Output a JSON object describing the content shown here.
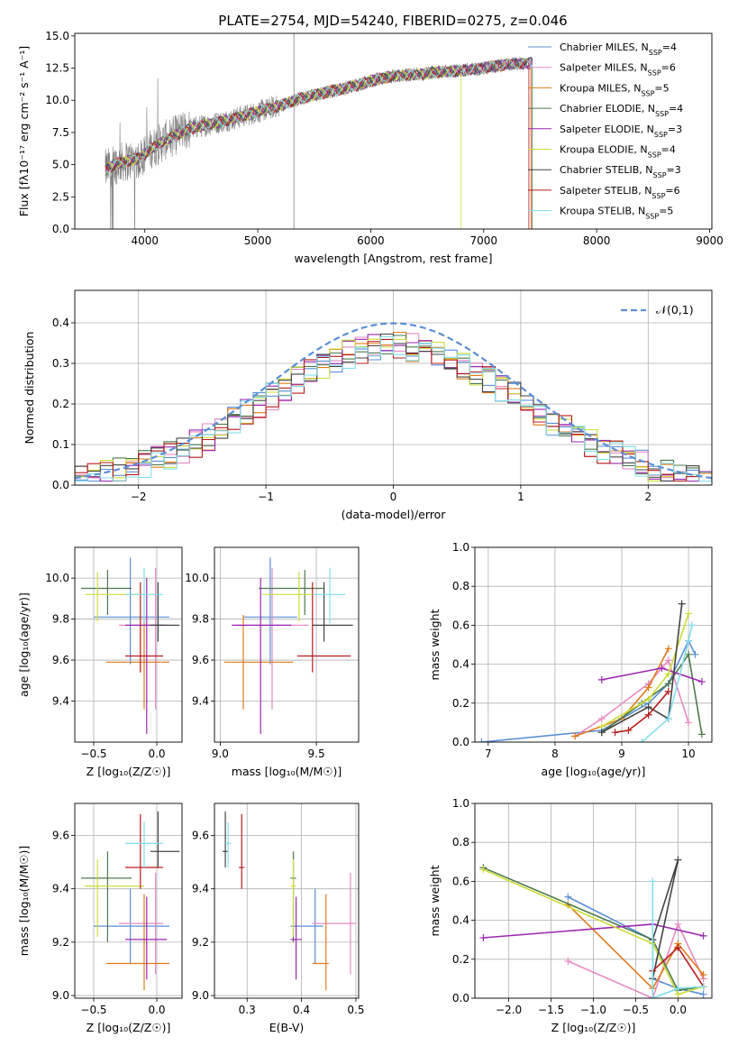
{
  "title": "PLATE=2754, MJD=54240, FIBERID=0275, z=0.046",
  "colors": {
    "data": "#808080",
    "Chabrier MILES": "#5b8fd6",
    "Salpeter MILES": "#e78ac3",
    "Kroupa MILES": "#e07b1a",
    "Chabrier ELODIE": "#4c7a4c",
    "Salpeter ELODIE": "#9b27b0",
    "Kroupa ELODIE": "#cddc39",
    "Chabrier STELIB": "#444444",
    "Salpeter STELIB": "#b71c1c",
    "Kroupa STELIB": "#80deea",
    "normal": "#5b8fd6"
  },
  "chart_data": [
    {
      "type": "line",
      "id": "spectrum",
      "title": "PLATE=2754, MJD=54240, FIBERID=0275, z=0.046",
      "xlabel": "wavelength [Angstrom, rest frame]",
      "ylabel": "Flux [fλ10⁻¹⁷ erg cm⁻² s⁻¹ A⁻¹]",
      "xlim": [
        3380,
        9020
      ],
      "ylim": [
        0,
        15.2
      ],
      "xticks": [
        "4000",
        "5000",
        "6000",
        "7000",
        "8000",
        "9000"
      ],
      "yticks": [
        "0.0",
        "2.5",
        "5.0",
        "7.5",
        "10.0",
        "12.5",
        "15.0"
      ],
      "legend_position": "top-right",
      "spectrum_x_range": [
        3650,
        7430
      ],
      "flux_anchors": {
        "x": [
          3650,
          3700,
          3800,
          3950,
          4050,
          4200,
          4400,
          4600,
          4800,
          5000,
          5200,
          5400,
          5600,
          5800,
          6000,
          6200,
          6400,
          6600,
          6800,
          7000,
          7200,
          7430
        ],
        "y": [
          4.6,
          4.9,
          5.2,
          5.5,
          6.2,
          7.0,
          7.8,
          8.2,
          8.6,
          9.1,
          9.6,
          10.2,
          10.6,
          11.0,
          11.5,
          11.9,
          12.0,
          12.2,
          12.3,
          12.5,
          12.8,
          12.9
        ]
      },
      "series": [
        {
          "name": "Chabrier MILES",
          "legend": "Chabrier MILES, N",
          "nssp": "=4"
        },
        {
          "name": "Salpeter MILES",
          "legend": "Salpeter MILES, N",
          "nssp": "=6"
        },
        {
          "name": "Kroupa MILES",
          "legend": "Kroupa MILES, N",
          "nssp": "=5"
        },
        {
          "name": "Chabrier ELODIE",
          "legend": "Chabrier ELODIE, N",
          "nssp": "=4"
        },
        {
          "name": "Salpeter ELODIE",
          "legend": "Salpeter ELODIE, N",
          "nssp": "=3"
        },
        {
          "name": "Kroupa ELODIE",
          "legend": "Kroupa ELODIE, N",
          "nssp": "=4"
        },
        {
          "name": "Chabrier STELIB",
          "legend": "Chabrier STELIB, N",
          "nssp": "=3"
        },
        {
          "name": "Salpeter STELIB",
          "legend": "Salpeter STELIB, N",
          "nssp": "=6"
        },
        {
          "name": "Kroupa STELIB",
          "legend": "Kroupa STELIB, N",
          "nssp": "=5"
        }
      ],
      "legend_subscript": "SSP",
      "model_end": {
        "Kroupa ELODIE": 6800,
        "Chabrier ELODIE": 7430,
        "Kroupa MILES": 7420,
        "Salpeter MILES": 7420,
        "Salpeter STELIB": 7400
      },
      "sky_spikes": [
        5320
      ]
    },
    {
      "type": "bar",
      "id": "residuals",
      "xlabel": "(data-model)/error",
      "ylabel": "Normed distribution",
      "xlim": [
        -2.5,
        2.5
      ],
      "ylim": [
        0,
        0.48
      ],
      "xticks": [
        "−2",
        "−1",
        "0",
        "1",
        "2"
      ],
      "yticks": [
        "0.0",
        "0.1",
        "0.2",
        "0.3",
        "0.4"
      ],
      "bin_width": 0.1,
      "legend": "𝒩(0,1)",
      "legend_position": "top-right"
    },
    {
      "type": "scatter",
      "id": "age-vs-Z",
      "xlabel": "Z [log₁₀(Z/Z☉)]",
      "ylabel": "age  [log₁₀(age/yr)]",
      "xlim": [
        -0.65,
        0.2
      ],
      "ylim": [
        9.2,
        10.15
      ],
      "xticks": [
        "−0.5",
        "0.0"
      ],
      "yticks": [
        "9.4",
        "9.6",
        "9.8",
        "10.0"
      ]
    },
    {
      "type": "scatter",
      "id": "age-vs-mass",
      "xlabel": "mass [log₁₀(M/M☉)]",
      "xlim": [
        8.97,
        9.72
      ],
      "ylim": [
        9.2,
        10.15
      ],
      "xticks": [
        "9.0",
        "9.5"
      ],
      "yticks": [
        "9.4",
        "9.6",
        "9.8",
        "10.0"
      ]
    },
    {
      "type": "line",
      "id": "massweight-vs-age",
      "xlabel": "age  [log₁₀(age/yr)]",
      "ylabel": "mass weight",
      "xlim": [
        6.8,
        10.35
      ],
      "ylim": [
        0,
        1.0
      ],
      "xticks": [
        "7",
        "8",
        "9",
        "10"
      ],
      "yticks": [
        "0.0",
        "0.2",
        "0.4",
        "0.6",
        "0.8",
        "1.0"
      ]
    },
    {
      "type": "scatter",
      "id": "mass-vs-Z",
      "xlabel": "Z [log₁₀(Z/Z☉)]",
      "ylabel": "mass [log₁₀(M/M☉)]",
      "xlim": [
        -0.65,
        0.2
      ],
      "ylim": [
        8.99,
        9.72
      ],
      "xticks": [
        "−0.5",
        "0.0"
      ],
      "yticks": [
        "9.0",
        "9.2",
        "9.4",
        "9.6"
      ]
    },
    {
      "type": "scatter",
      "id": "mass-vs-ebv",
      "xlabel": "E(B-V)",
      "xlim": [
        0.24,
        0.505
      ],
      "ylim": [
        8.99,
        9.72
      ],
      "xticks": [
        "0.3",
        "0.4",
        "0.5"
      ],
      "yticks": [
        "9.0",
        "9.2",
        "9.4",
        "9.6"
      ]
    },
    {
      "type": "line",
      "id": "massweight-vs-Z",
      "xlabel": "Z [log₁₀(Z/Z☉)]",
      "ylabel": "mass weight",
      "xlim": [
        -2.4,
        0.4
      ],
      "ylim": [
        0,
        1.0
      ],
      "xticks": [
        "−2.0",
        "−1.5",
        "−1.0",
        "−0.5",
        "0.0"
      ],
      "yticks": [
        "0.0",
        "0.2",
        "0.4",
        "0.6",
        "0.8",
        "1.0"
      ]
    }
  ],
  "models": [
    {
      "name": "Chabrier MILES",
      "age": 9.81,
      "age_lo": 9.58,
      "age_hi": 10.1,
      "Z": -0.21,
      "Z_lo": -0.5,
      "Z_hi": 0.1,
      "mass": 9.26,
      "mass_lo": 9.12,
      "mass_hi": 9.4,
      "ebv": 0.425,
      "ebv_lo": 0.38,
      "ebv_hi": 0.44,
      "sfh_age": [
        6.9,
        8.7,
        9.4,
        9.7,
        10.0,
        10.1
      ],
      "sfh_w": [
        0.0,
        0.06,
        0.2,
        0.3,
        0.52,
        0.45
      ],
      "sfh_Z": [
        -1.3,
        -0.3,
        -0.3,
        0.0,
        0.3
      ],
      "sfh_Zw": [
        0.52,
        0.3,
        0.1,
        0.05,
        0.02
      ]
    },
    {
      "name": "Salpeter MILES",
      "age": 9.77,
      "age_lo": 9.36,
      "age_hi": 10.05,
      "Z": -0.01,
      "Z_lo": -0.3,
      "Z_hi": 0.05,
      "mass": 9.27,
      "mass_lo": 9.08,
      "mass_hi": 9.46,
      "ebv": 0.49,
      "ebv_lo": 0.42,
      "ebv_hi": 0.5,
      "sfh_age": [
        8.3,
        8.7,
        9.4,
        9.7,
        10.0
      ],
      "sfh_w": [
        0.03,
        0.12,
        0.3,
        0.42,
        0.1
      ],
      "sfh_Z": [
        -1.3,
        -0.3,
        0.0,
        0.3
      ],
      "sfh_Zw": [
        0.19,
        0.0,
        0.38,
        0.1
      ]
    },
    {
      "name": "Kroupa MILES",
      "age": 9.59,
      "age_lo": 9.36,
      "age_hi": 9.82,
      "Z": -0.1,
      "Z_lo": -0.4,
      "Z_hi": 0.1,
      "mass": 9.12,
      "mass_lo": 9.02,
      "mass_hi": 9.38,
      "ebv": 0.445,
      "ebv_lo": 0.42,
      "ebv_hi": 0.45,
      "sfh_age": [
        8.3,
        9.0,
        9.4,
        9.7
      ],
      "sfh_w": [
        0.03,
        0.12,
        0.28,
        0.48
      ],
      "sfh_Z": [
        -1.3,
        -0.3,
        0.0,
        0.3
      ],
      "sfh_Zw": [
        0.48,
        0.05,
        0.28,
        0.12
      ]
    },
    {
      "name": "Chabrier ELODIE",
      "age": 9.95,
      "age_lo": 9.82,
      "age_hi": 10.04,
      "Z": -0.39,
      "Z_lo": -0.6,
      "Z_hi": -0.2,
      "mass": 9.44,
      "mass_lo": 9.2,
      "mass_hi": 9.54,
      "ebv": 0.385,
      "ebv_lo": 0.38,
      "ebv_hi": 0.39,
      "sfh_age": [
        8.7,
        9.3,
        9.7,
        10.0,
        10.2
      ],
      "sfh_w": [
        0.05,
        0.2,
        0.3,
        0.45,
        0.04
      ],
      "sfh_Z": [
        -2.3,
        -0.3,
        0.0,
        0.3
      ],
      "sfh_Zw": [
        0.67,
        0.3,
        0.04,
        0.06
      ]
    },
    {
      "name": "Salpeter ELODIE",
      "age": 9.77,
      "age_lo": 9.24,
      "age_hi": 10.0,
      "Z": -0.08,
      "Z_lo": -0.25,
      "Z_hi": 0.08,
      "mass": 9.21,
      "mass_lo": 9.06,
      "mass_hi": 9.37,
      "ebv": 0.39,
      "ebv_lo": 0.38,
      "ebv_hi": 0.4,
      "sfh_age": [
        8.7,
        9.6,
        10.2
      ],
      "sfh_w": [
        0.32,
        0.38,
        0.31
      ],
      "sfh_Z": [
        -2.3,
        -0.3,
        0.3
      ],
      "sfh_Zw": [
        0.31,
        0.38,
        0.32
      ]
    },
    {
      "name": "Kroupa ELODIE",
      "age": 9.92,
      "age_lo": 9.79,
      "age_hi": 10.03,
      "Z": -0.47,
      "Z_lo": -0.57,
      "Z_hi": -0.1,
      "mass": 9.41,
      "mass_lo": 9.22,
      "mass_hi": 9.51,
      "ebv": 0.385,
      "ebv_lo": 0.38,
      "ebv_hi": 0.39,
      "sfh_age": [
        8.7,
        9.4,
        9.7,
        10.0
      ],
      "sfh_w": [
        0.08,
        0.22,
        0.35,
        0.66
      ],
      "sfh_Z": [
        -2.3,
        -0.3,
        0.0,
        0.3
      ],
      "sfh_Zw": [
        0.66,
        0.28,
        0.02,
        0.06
      ]
    },
    {
      "name": "Chabrier STELIB",
      "age": 9.77,
      "age_lo": 9.69,
      "age_hi": 9.98,
      "Z": 0.01,
      "Z_lo": -0.05,
      "Z_hi": 0.18,
      "mass": 9.54,
      "mass_lo": 9.48,
      "mass_hi": 9.69,
      "ebv": 0.26,
      "ebv_lo": 0.255,
      "ebv_hi": 0.265,
      "sfh_age": [
        8.7,
        9.4,
        9.7,
        9.9
      ],
      "sfh_w": [
        0.05,
        0.18,
        0.12,
        0.71
      ],
      "sfh_Z": [
        -0.3,
        0.0,
        -0.3
      ],
      "sfh_Zw": [
        0.1,
        0.71,
        0.3
      ]
    },
    {
      "name": "Salpeter STELIB",
      "age": 9.62,
      "age_lo": 9.54,
      "age_hi": 9.98,
      "Z": -0.13,
      "Z_lo": -0.25,
      "Z_hi": 0.05,
      "mass": 9.48,
      "mass_lo": 9.4,
      "mass_hi": 9.68,
      "ebv": 0.29,
      "ebv_lo": 0.285,
      "ebv_hi": 0.295,
      "sfh_age": [
        8.9,
        9.1,
        9.4,
        9.7
      ],
      "sfh_w": [
        0.05,
        0.06,
        0.14,
        0.26
      ],
      "sfh_Z": [
        -0.3,
        0.0,
        0.3
      ],
      "sfh_Zw": [
        0.14,
        0.26,
        0.06
      ]
    },
    {
      "name": "Kroupa STELIB",
      "age": 9.92,
      "age_lo": 9.78,
      "age_hi": 10.05,
      "Z": -0.1,
      "Z_lo": -0.25,
      "Z_hi": 0.05,
      "mass": 9.57,
      "mass_lo": 9.48,
      "mass_hi": 9.65,
      "ebv": 0.265,
      "ebv_lo": 0.26,
      "ebv_hi": 0.27,
      "sfh_age": [
        9.3,
        9.7,
        10.0,
        10.05
      ],
      "sfh_w": [
        0.0,
        0.12,
        0.52,
        0.6
      ],
      "sfh_Z": [
        -0.3,
        -0.3,
        0.0,
        0.3
      ],
      "sfh_Zw": [
        0.6,
        0.0,
        0.05,
        0.06
      ]
    }
  ]
}
